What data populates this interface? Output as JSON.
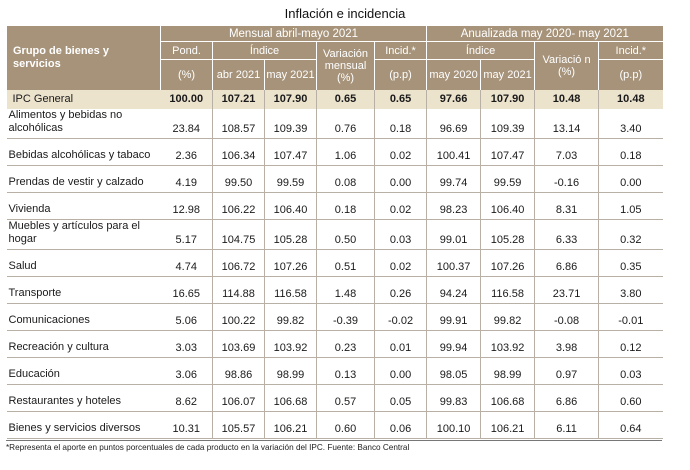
{
  "title": "Inflación e incidencia",
  "header": {
    "group": "Grupo de bienes y servicios",
    "section_monthly": "Mensual abril-mayo 2021",
    "section_annual": "Anualizada may 2020- may 2021",
    "pond": "Pond.",
    "pond_unit": "(%)",
    "index": "Índice",
    "var_monthly": "Variación mensual (%)",
    "incid": "Incid.*",
    "incid_unit": "(p.p)",
    "index_annual": "Índice",
    "var_annual": "Variació n (%)",
    "incid_annual": "Incid.*",
    "incid_annual_unit": "(p.p)",
    "col_abr2021": "abr 2021",
    "col_may2021": "may 2021",
    "col_may2020": "may 2020",
    "col_may2021b": "may 2021"
  },
  "ipc": {
    "name": "IPC General",
    "values": [
      "100.00",
      "107.21",
      "107.90",
      "0.65",
      "0.65",
      "97.66",
      "107.90",
      "10.48",
      "10.48"
    ]
  },
  "rows": [
    {
      "name": "Alimentos y bebidas no alcohólicas",
      "values": [
        "23.84",
        "108.57",
        "109.39",
        "0.76",
        "0.18",
        "96.69",
        "109.39",
        "13.14",
        "3.40"
      ]
    },
    {
      "name": "Bebidas alcohólicas y tabaco",
      "values": [
        "2.36",
        "106.34",
        "107.47",
        "1.06",
        "0.02",
        "100.41",
        "107.47",
        "7.03",
        "0.18"
      ]
    },
    {
      "name": "Prendas de vestir y calzado",
      "values": [
        "4.19",
        "99.50",
        "99.59",
        "0.08",
        "0.00",
        "99.74",
        "99.59",
        "-0.16",
        "0.00"
      ]
    },
    {
      "name": "Vivienda",
      "values": [
        "12.98",
        "106.22",
        "106.40",
        "0.18",
        "0.02",
        "98.23",
        "106.40",
        "8.31",
        "1.05"
      ]
    },
    {
      "name": "Muebles y artículos para el hogar",
      "values": [
        "5.17",
        "104.75",
        "105.28",
        "0.50",
        "0.03",
        "99.01",
        "105.28",
        "6.33",
        "0.32"
      ]
    },
    {
      "name": "Salud",
      "values": [
        "4.74",
        "106.72",
        "107.26",
        "0.51",
        "0.02",
        "100.37",
        "107.26",
        "6.86",
        "0.35"
      ]
    },
    {
      "name": "Transporte",
      "values": [
        "16.65",
        "114.88",
        "116.58",
        "1.48",
        "0.26",
        "94.24",
        "116.58",
        "23.71",
        "3.80"
      ]
    },
    {
      "name": "Comunicaciones",
      "values": [
        "5.06",
        "100.22",
        "99.82",
        "-0.39",
        "-0.02",
        "99.91",
        "99.82",
        "-0.08",
        "-0.01"
      ]
    },
    {
      "name": "Recreación y cultura",
      "values": [
        "3.03",
        "103.69",
        "103.92",
        "0.23",
        "0.01",
        "99.94",
        "103.92",
        "3.98",
        "0.12"
      ]
    },
    {
      "name": "Educación",
      "values": [
        "3.06",
        "98.86",
        "98.99",
        "0.13",
        "0.00",
        "98.05",
        "98.99",
        "0.97",
        "0.03"
      ]
    },
    {
      "name": "Restaurantes y hoteles",
      "values": [
        "8.62",
        "106.07",
        "106.68",
        "0.57",
        "0.05",
        "99.83",
        "106.68",
        "6.86",
        "0.60"
      ]
    },
    {
      "name": "Bienes y servicios diversos",
      "values": [
        "10.31",
        "105.57",
        "106.21",
        "0.60",
        "0.06",
        "100.10",
        "106.21",
        "6.11",
        "0.64"
      ]
    }
  ],
  "footnote": "*Representa el aporte en puntos porcentuales de cada producto en la variación del IPC.    Fuente: Banco Central"
}
